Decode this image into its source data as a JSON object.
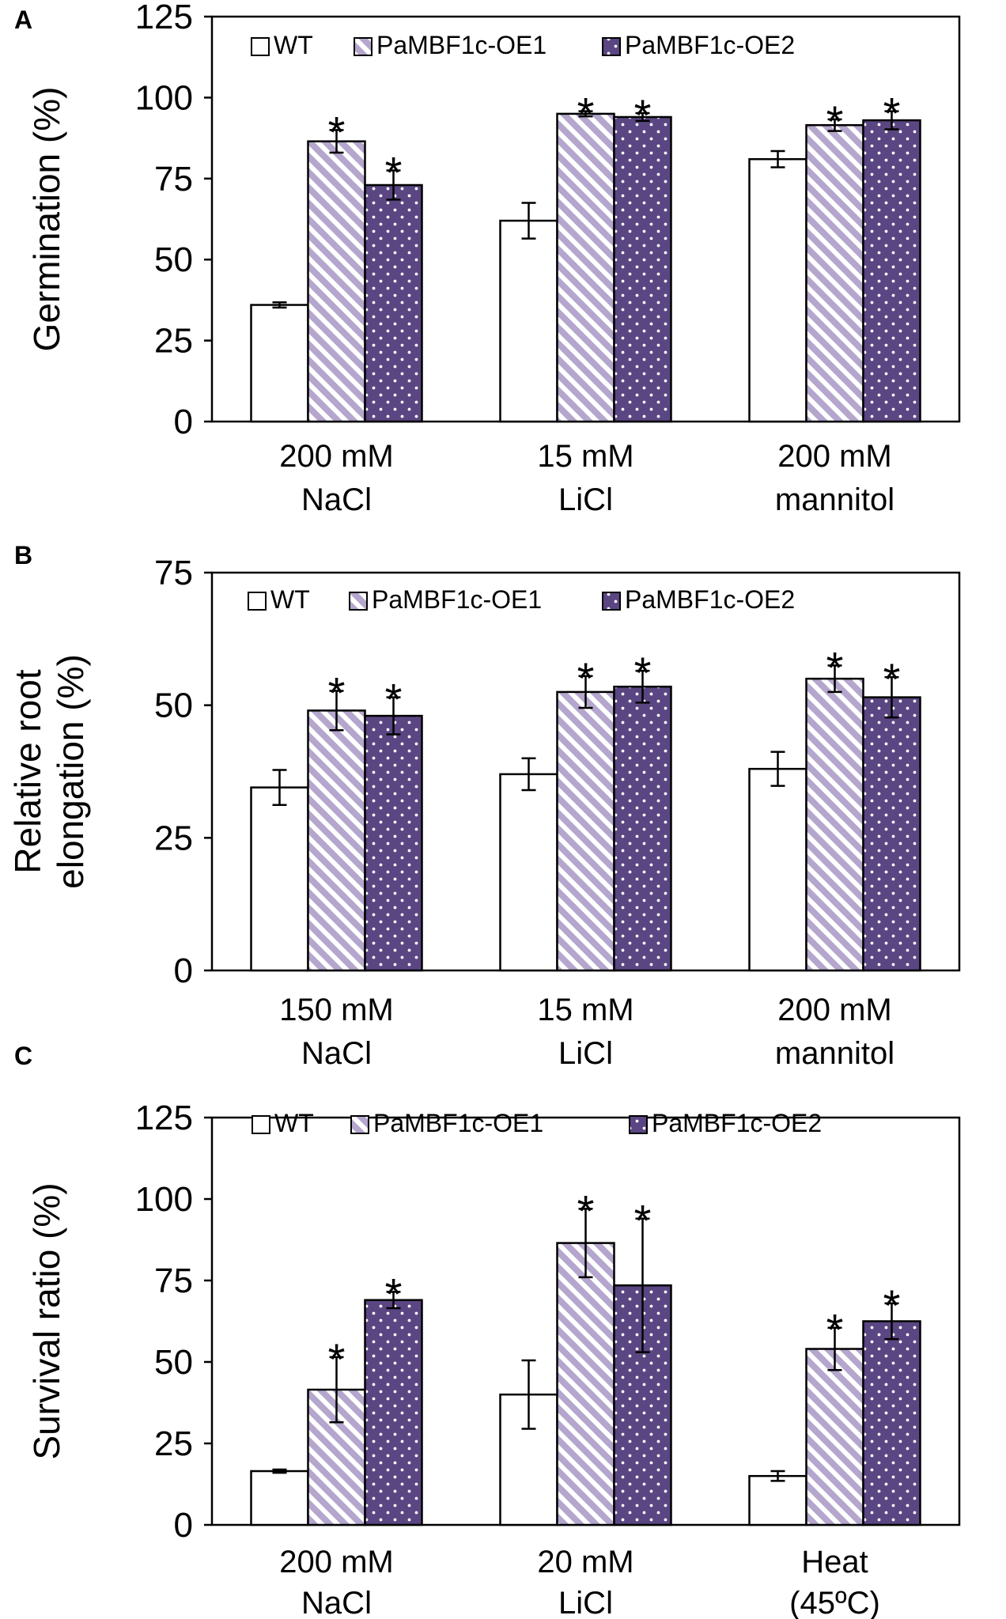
{
  "colors": {
    "wt_fill": "#ffffff",
    "oe1_base": "#b4a6cc",
    "oe1_stripe": "#ffffff",
    "oe2_fill": "#5a4682",
    "oe2_dot": "#ffffff",
    "outline": "#000000"
  },
  "chart_data": [
    {
      "panel": "A",
      "type": "bar",
      "ylabel": "Germination (%)",
      "ylim": [
        0,
        125
      ],
      "yticks": [
        "0",
        "25",
        "50",
        "75",
        "100",
        "125"
      ],
      "categories": [
        [
          "200 mM",
          "NaCl"
        ],
        [
          "15 mM",
          "LiCl"
        ],
        [
          "200 mM",
          "mannitol"
        ]
      ],
      "legend": [
        "WT",
        "PaMBF1c-OE1",
        "PaMBF1c-OE2"
      ],
      "series": [
        {
          "name": "WT",
          "values": [
            36,
            62,
            81
          ],
          "errors": [
            0.8,
            5.5,
            2.5
          ],
          "significant": [
            false,
            false,
            false
          ]
        },
        {
          "name": "PaMBF1c-OE1",
          "values": [
            86.5,
            95,
            91.5
          ],
          "errors": [
            3.5,
            0.8,
            1.8
          ],
          "significant": [
            true,
            true,
            true
          ]
        },
        {
          "name": "PaMBF1c-OE2",
          "values": [
            73,
            94,
            93
          ],
          "errors": [
            4.5,
            1.2,
            2.8
          ],
          "significant": [
            true,
            true,
            true
          ]
        }
      ],
      "annotation": "*"
    },
    {
      "panel": "B",
      "type": "bar",
      "ylabel": [
        "Relative root",
        "elongation (%)"
      ],
      "ylim": [
        0,
        75
      ],
      "yticks": [
        "0",
        "25",
        "50",
        "75"
      ],
      "categories": [
        [
          "150 mM",
          "NaCl"
        ],
        [
          "15 mM",
          "LiCl"
        ],
        [
          "200 mM",
          "mannitol"
        ]
      ],
      "legend": [
        "WT",
        "PaMBF1c-OE1",
        "PaMBF1c-OE2"
      ],
      "series": [
        {
          "name": "WT",
          "values": [
            34.5,
            37,
            38
          ],
          "errors": [
            3.3,
            3,
            3.2
          ],
          "significant": [
            false,
            false,
            false
          ]
        },
        {
          "name": "PaMBF1c-OE1",
          "values": [
            49,
            52.5,
            55
          ],
          "errors": [
            3.7,
            3,
            2.5
          ],
          "significant": [
            true,
            true,
            true
          ]
        },
        {
          "name": "PaMBF1c-OE2",
          "values": [
            48,
            53.5,
            51.5
          ],
          "errors": [
            3.5,
            3,
            3.8
          ],
          "significant": [
            true,
            true,
            true
          ]
        }
      ],
      "annotation": "*"
    },
    {
      "panel": "C",
      "type": "bar",
      "ylabel": "Survival ratio (%)",
      "ylim": [
        0,
        125
      ],
      "yticks": [
        "0",
        "25",
        "50",
        "75",
        "100",
        "125"
      ],
      "categories": [
        [
          "200 mM",
          "NaCl"
        ],
        [
          "20 mM",
          "LiCl"
        ],
        [
          "Heat",
          "(45ºC)"
        ]
      ],
      "legend": [
        "WT",
        "PaMBF1c-OE1",
        "PaMBF1c-OE2"
      ],
      "series": [
        {
          "name": "WT",
          "values": [
            16.5,
            40,
            15
          ],
          "errors": [
            0.5,
            10.5,
            1.5
          ],
          "significant": [
            false,
            false,
            false
          ]
        },
        {
          "name": "PaMBF1c-OE1",
          "values": [
            41.5,
            86.5,
            54
          ],
          "errors": [
            10,
            10.5,
            6.5
          ],
          "significant": [
            true,
            true,
            true
          ]
        },
        {
          "name": "PaMBF1c-OE2",
          "values": [
            69,
            73.5,
            62.5
          ],
          "errors": [
            2.5,
            20.5,
            5.5
          ],
          "significant": [
            true,
            true,
            true
          ]
        }
      ],
      "annotation": "*"
    }
  ]
}
